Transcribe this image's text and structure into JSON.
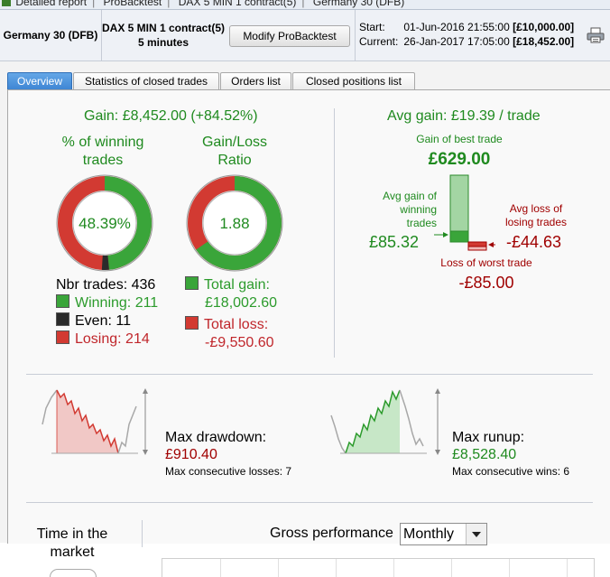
{
  "titlebar": {
    "part1": "Detailed report",
    "part2": "ProBacktest",
    "part3": "DAX 5 MIN 1 contract(5)",
    "part4": "Germany 30 (DFB)"
  },
  "info": {
    "instrument": "Germany 30 (DFB)",
    "strategy_line1": "DAX 5 MIN 1 contract(5)",
    "strategy_line2": "5 minutes",
    "modify_label": "Modify ProBacktest",
    "start_label": "Start:",
    "start_value": "01-Jun-2016 21:55:00",
    "start_capital": "[£10,000.00]",
    "current_label": "Current:",
    "current_value": "26-Jan-2017 17:05:00",
    "current_capital": "[£18,452.00]"
  },
  "tabs": [
    "Overview",
    "Statistics of closed trades",
    "Orders list",
    "Closed positions list"
  ],
  "overview": {
    "gain_label": "Gain: £8,452.00 (+84.52%)",
    "winning_title_1": "% of winning",
    "winning_title_2": "trades",
    "winning_pct": "48.39%",
    "ratio_title_1": "Gain/Loss",
    "ratio_title_2": "Ratio",
    "ratio_value": "1.88",
    "nbr_trades": "Nbr trades: 436",
    "winning": "Winning: 211",
    "even": "Even: 11",
    "losing": "Losing: 214",
    "total_gain_label": "Total gain:",
    "total_gain_value": "£18,002.60",
    "total_loss_label": "Total loss:",
    "total_loss_value": "-£9,550.60",
    "avg_gain_label": "Avg gain: £19.39 / trade",
    "best_trade_label": "Gain of best trade",
    "best_trade_value": "£629.00",
    "avg_win_label_1": "Avg gain of",
    "avg_win_label_2": "winning",
    "avg_win_label_3": "trades",
    "avg_win_value": "£85.32",
    "avg_loss_label_1": "Avg loss of",
    "avg_loss_label_2": "losing trades",
    "avg_loss_value": "-£44.63",
    "worst_trade_label": "Loss of worst trade",
    "worst_trade_value": "-£85.00",
    "drawdown_label": "Max drawdown:",
    "drawdown_value": "£910.40",
    "cons_losses": "Max consecutive losses: 7",
    "runup_label": "Max runup:",
    "runup_value": "£8,528.40",
    "cons_wins": "Max consecutive wins: 6",
    "time_market_1": "Time in the",
    "time_market_2": "market",
    "gross_perf_label": "Gross performance",
    "period_selected": "Monthly"
  },
  "colors": {
    "win": "#3aa53a",
    "lose": "#d23a32",
    "even": "#2b2b2b",
    "accent": "#3f86d4"
  },
  "stats": {
    "winning_fraction": 0.4839,
    "even_fraction": 0.0252,
    "gain_loss_ratio": 1.88
  }
}
